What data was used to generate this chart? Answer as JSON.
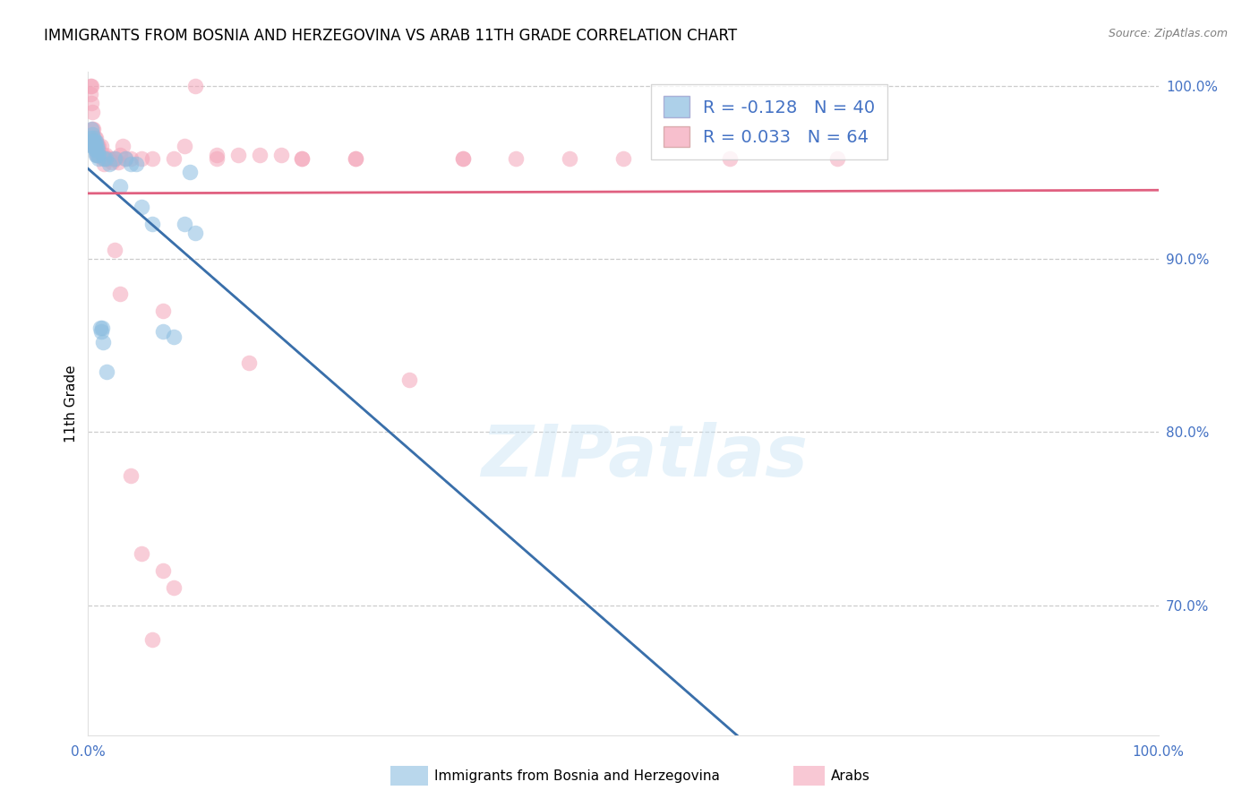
{
  "title": "IMMIGRANTS FROM BOSNIA AND HERZEGOVINA VS ARAB 11TH GRADE CORRELATION CHART",
  "source": "Source: ZipAtlas.com",
  "ylabel": "11th Grade",
  "legend_bosnia_R": "-0.128",
  "legend_bosnia_N": "40",
  "legend_arab_R": "0.033",
  "legend_arab_N": "64",
  "bosnia_color": "#8bbde0",
  "arab_color": "#f4a4b8",
  "bosnia_line_color": "#3a6faa",
  "arab_line_color": "#e06080",
  "bosnia_dash_color": "#a0cce8",
  "watermark_text": "ZIPatlas",
  "xlim": [
    0.0,
    1.0
  ],
  "ylim": [
    0.625,
    1.008
  ],
  "y_ticks": [
    0.7,
    0.8,
    0.9,
    1.0
  ],
  "grid_color": "#cccccc",
  "background_color": "#ffffff",
  "title_fontsize": 12,
  "axis_label_fontsize": 11,
  "tick_fontsize": 11,
  "tick_color": "#4472c4",
  "legend_fontsize": 14,
  "bosnia_x": [
    0.002,
    0.003,
    0.003,
    0.004,
    0.004,
    0.004,
    0.005,
    0.005,
    0.005,
    0.006,
    0.006,
    0.006,
    0.007,
    0.007,
    0.007,
    0.008,
    0.008,
    0.009,
    0.01,
    0.01,
    0.011,
    0.012,
    0.013,
    0.014,
    0.015,
    0.016,
    0.017,
    0.02,
    0.025,
    0.03,
    0.035,
    0.04,
    0.045,
    0.05,
    0.06,
    0.07,
    0.08,
    0.09,
    0.095,
    0.1
  ],
  "bosnia_y": [
    0.97,
    0.975,
    0.968,
    0.972,
    0.968,
    0.965,
    0.97,
    0.968,
    0.965,
    0.968,
    0.965,
    0.963,
    0.968,
    0.963,
    0.96,
    0.965,
    0.96,
    0.963,
    0.96,
    0.958,
    0.86,
    0.858,
    0.86,
    0.852,
    0.958,
    0.958,
    0.835,
    0.955,
    0.958,
    0.942,
    0.958,
    0.955,
    0.955,
    0.93,
    0.92,
    0.858,
    0.855,
    0.92,
    0.95,
    0.915
  ],
  "arab_x": [
    0.002,
    0.002,
    0.003,
    0.003,
    0.004,
    0.004,
    0.005,
    0.005,
    0.005,
    0.006,
    0.006,
    0.007,
    0.007,
    0.008,
    0.008,
    0.009,
    0.01,
    0.01,
    0.012,
    0.014,
    0.015,
    0.015,
    0.016,
    0.018,
    0.02,
    0.022,
    0.024,
    0.026,
    0.028,
    0.03,
    0.032,
    0.035,
    0.04,
    0.05,
    0.06,
    0.07,
    0.08,
    0.1,
    0.12,
    0.15,
    0.18,
    0.2,
    0.25,
    0.3,
    0.35,
    0.4,
    0.45,
    0.5,
    0.6,
    0.7,
    0.025,
    0.03,
    0.04,
    0.2,
    0.25,
    0.35,
    0.05,
    0.06,
    0.07,
    0.08,
    0.09,
    0.12,
    0.14,
    0.16
  ],
  "arab_y": [
    1.0,
    0.995,
    1.0,
    0.99,
    0.985,
    0.975,
    0.975,
    0.968,
    0.965,
    0.97,
    0.965,
    0.97,
    0.965,
    0.965,
    0.96,
    0.965,
    0.965,
    0.96,
    0.965,
    0.96,
    0.958,
    0.955,
    0.96,
    0.958,
    0.958,
    0.956,
    0.958,
    0.958,
    0.956,
    0.96,
    0.965,
    0.958,
    0.958,
    0.958,
    0.958,
    0.87,
    0.958,
    1.0,
    0.96,
    0.84,
    0.96,
    0.958,
    0.958,
    0.83,
    0.958,
    0.958,
    0.958,
    0.958,
    0.958,
    0.958,
    0.905,
    0.88,
    0.775,
    0.958,
    0.958,
    0.958,
    0.73,
    0.68,
    0.72,
    0.71,
    0.965,
    0.958,
    0.96,
    0.96
  ],
  "bottom_legend": [
    {
      "label": "Immigrants from Bosnia and Herzegovina",
      "color": "#8bbde0"
    },
    {
      "label": "Arabs",
      "color": "#f4a4b8"
    }
  ]
}
